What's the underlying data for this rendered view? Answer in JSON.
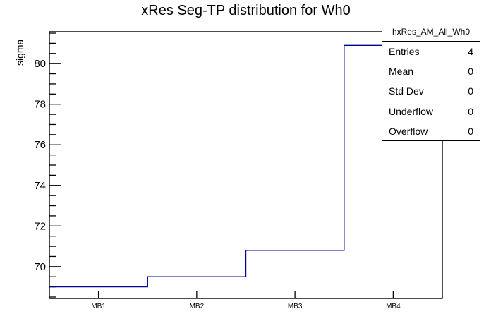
{
  "title": "xRes Seg-TP distribution for Wh0",
  "stats_box": {
    "title": "hxRes_AM_All_Wh0",
    "rows": [
      {
        "label": "Entries",
        "value": "4"
      },
      {
        "label": "Mean",
        "value": "0"
      },
      {
        "label": "Std Dev",
        "value": "0"
      },
      {
        "label": "Underflow",
        "value": "0"
      },
      {
        "label": "Overflow",
        "value": "0"
      }
    ]
  },
  "chart_data": {
    "type": "line",
    "style": "step-histogram",
    "title": "xRes Seg-TP distribution for Wh0",
    "categories": [
      "MB1",
      "MB2",
      "MB3",
      "MB4"
    ],
    "values": [
      69.0,
      69.5,
      70.8,
      80.9
    ],
    "xlabel": "",
    "ylabel": "sigma",
    "ylim": [
      68.43,
      81.57
    ],
    "yticks": [
      70,
      72,
      74,
      76,
      78,
      80
    ],
    "ytick_minor_step": 0.5,
    "grid": false,
    "legend_position": "none",
    "line_color": "#000099",
    "axis_color": "#000000",
    "text_color": "#000000",
    "background": "#ffffff"
  }
}
